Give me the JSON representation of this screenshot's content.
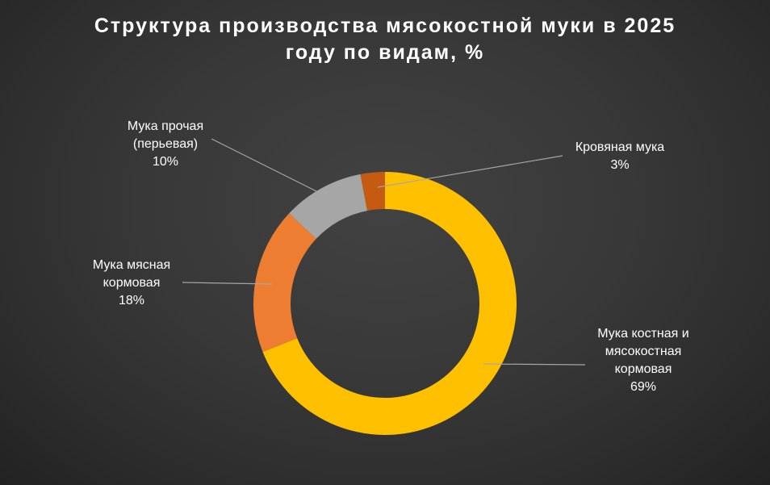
{
  "title": {
    "line1": "Структура производства мясокостной муки в 2025",
    "line2": "году по видам, %",
    "full": "Структура производства мясокостной муки в 2025 году по видам, %"
  },
  "chart_data": {
    "type": "pie",
    "subtype": "donut",
    "title": "Структура производства мясокостной муки в 2025 году по видам, %",
    "unit": "%",
    "direction": "clockwise",
    "start_angle_deg": 0,
    "slices": [
      {
        "label": "Мука костная и мясокостная кормовая",
        "value": 69,
        "color": "#FFC000"
      },
      {
        "label": "Мука мясная кормовая",
        "value": 18,
        "color": "#ED7D31"
      },
      {
        "label": "Мука прочая (перьевая)",
        "value": 10,
        "color": "#A6A6A6"
      },
      {
        "label": "Кровяная мука",
        "value": 3,
        "color": "#C55A11"
      }
    ],
    "legend_position": "none",
    "labels_as_callouts": true
  },
  "callouts": {
    "prochaya": [
      "Мука прочая",
      "(перьевая)",
      "10%"
    ],
    "krovyanaya": [
      "Кровяная мука",
      "3%"
    ],
    "myasnaya": [
      "Мука мясная",
      "кормовая",
      "18%"
    ],
    "kostnaya": [
      "Мука костная и",
      "мясокостная",
      "кормовая",
      "69%"
    ]
  },
  "colors": {
    "background_center": "#3F3F3F",
    "background_edge": "#262626",
    "title_text": "#FFFFFF",
    "label_text": "#FFFFFF",
    "leader_line": "#A6A6A6"
  }
}
